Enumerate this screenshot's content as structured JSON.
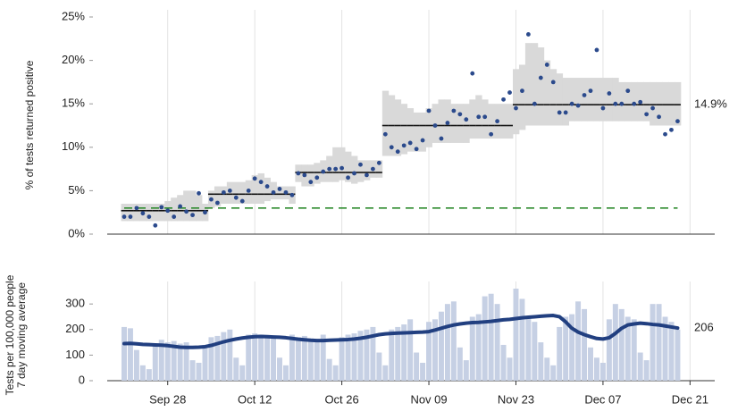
{
  "chart_data": {
    "type": "panels",
    "categories": [
      null,
      null,
      null,
      null,
      null,
      null,
      null,
      "Sep 28",
      null,
      null,
      null,
      null,
      null,
      null,
      null,
      null,
      null,
      null,
      null,
      null,
      null,
      "Oct 12",
      null,
      null,
      null,
      null,
      null,
      null,
      null,
      null,
      null,
      null,
      null,
      null,
      null,
      "Oct 26",
      null,
      null,
      null,
      null,
      null,
      null,
      null,
      null,
      null,
      null,
      null,
      null,
      null,
      "Nov 09",
      null,
      null,
      null,
      null,
      null,
      null,
      null,
      null,
      null,
      null,
      null,
      null,
      null,
      "Nov 23",
      null,
      null,
      null,
      null,
      null,
      null,
      null,
      null,
      null,
      null,
      null,
      null,
      null,
      "Dec 07",
      null,
      null,
      null,
      null,
      null,
      null,
      null,
      null,
      null,
      null,
      null,
      null,
      null,
      "Dec 21"
    ],
    "panels": [
      {
        "type": "scatter",
        "ylabel": "% of tests returned positive",
        "ylim": [
          0,
          25
        ],
        "yticks": [
          {
            "value": 0,
            "label": "0%"
          },
          {
            "value": 5,
            "label": "5%"
          },
          {
            "value": 10,
            "label": "10%"
          },
          {
            "value": 15,
            "label": "15%"
          },
          {
            "value": 20,
            "label": "20%"
          },
          {
            "value": 25,
            "label": "25%"
          }
        ],
        "band": {
          "color": "#d9d9d9",
          "lower": [
            1.5,
            1.5,
            1.5,
            1.5,
            1.5,
            1.5,
            1.5,
            1.5,
            1.5,
            1.5,
            1.5,
            1.5,
            1.5,
            1.5,
            3.0,
            3.2,
            3.5,
            3.5,
            3.5,
            3.5,
            3.5,
            3.5,
            3.5,
            3.8,
            4.0,
            4.0,
            4.0,
            3.5,
            6.0,
            5.5,
            5.5,
            5.8,
            6.0,
            6.0,
            6.0,
            6.2,
            6.0,
            5.8,
            6.0,
            6.2,
            6.5,
            6.5,
            9.0,
            9.0,
            9.0,
            9.2,
            9.5,
            9.5,
            9.5,
            10.0,
            10.5,
            10.5,
            10.5,
            10.5,
            10.5,
            10.5,
            11.0,
            11.0,
            11.0,
            11.0,
            11.0,
            11.0,
            11.0,
            11.5,
            12.0,
            12.5,
            12.5,
            12.5,
            12.5,
            12.5,
            12.5,
            12.5,
            13.0,
            13.0,
            13.0,
            13.0,
            13.0,
            13.0,
            13.0,
            13.0,
            13.0,
            13.0,
            13.0,
            13.0,
            13.0,
            12.5,
            12.5,
            12.5,
            12.5,
            12.5,
            null,
            null
          ],
          "upper": [
            3.5,
            3.5,
            3.5,
            3.5,
            3.5,
            3.5,
            3.5,
            3.8,
            4.2,
            4.5,
            5.0,
            5.0,
            4.5,
            3.5,
            5.0,
            5.5,
            5.5,
            6.0,
            6.0,
            6.0,
            6.2,
            6.8,
            7.0,
            6.5,
            6.0,
            5.5,
            5.5,
            5.5,
            8.0,
            8.0,
            8.0,
            8.2,
            8.5,
            9.0,
            10.0,
            10.0,
            9.5,
            9.0,
            8.5,
            8.5,
            8.5,
            8.5,
            16.5,
            16.0,
            15.5,
            15.0,
            14.5,
            14.0,
            14.0,
            14.5,
            15.0,
            15.5,
            15.5,
            15.0,
            15.0,
            15.0,
            15.5,
            16.0,
            15.5,
            15.0,
            15.0,
            15.0,
            15.0,
            19.0,
            19.5,
            22.0,
            22.0,
            21.5,
            20.0,
            19.0,
            18.5,
            18.0,
            18.0,
            18.0,
            18.0,
            18.0,
            18.0,
            18.0,
            18.0,
            18.0,
            17.5,
            17.5,
            17.5,
            17.5,
            17.5,
            17.5,
            17.5,
            17.5,
            17.5,
            17.5,
            null,
            null
          ]
        },
        "median": {
          "color": "#111111",
          "values": [
            2.7,
            2.7,
            2.7,
            2.7,
            2.7,
            2.7,
            2.7,
            2.7,
            2.7,
            2.7,
            2.7,
            2.7,
            2.7,
            2.7,
            4.6,
            4.6,
            4.6,
            4.6,
            4.6,
            4.6,
            4.6,
            4.6,
            4.6,
            4.6,
            4.6,
            4.6,
            4.6,
            4.6,
            7.1,
            7.1,
            7.1,
            7.1,
            7.1,
            7.1,
            7.1,
            7.1,
            7.1,
            7.1,
            7.1,
            7.1,
            7.1,
            7.1,
            12.5,
            12.5,
            12.5,
            12.5,
            12.5,
            12.5,
            12.5,
            12.5,
            12.5,
            12.5,
            12.5,
            12.5,
            12.5,
            12.5,
            12.5,
            12.5,
            12.5,
            12.5,
            12.5,
            12.5,
            12.5,
            14.9,
            14.9,
            14.9,
            14.9,
            14.9,
            14.9,
            14.9,
            14.9,
            14.9,
            14.9,
            14.9,
            14.9,
            14.9,
            14.9,
            14.9,
            14.9,
            14.9,
            14.9,
            14.9,
            14.9,
            14.9,
            14.9,
            14.9,
            14.9,
            14.9,
            14.9,
            14.9,
            null,
            null
          ]
        },
        "points": {
          "color": "#2b4a8c",
          "values": [
            2.0,
            2.0,
            3.0,
            2.4,
            2.0,
            1.0,
            3.1,
            2.7,
            2.0,
            3.2,
            2.6,
            2.2,
            4.7,
            2.5,
            4.0,
            3.6,
            4.8,
            5.0,
            4.2,
            3.8,
            5.0,
            6.4,
            6.0,
            5.5,
            4.8,
            5.2,
            4.8,
            4.5,
            7.0,
            6.8,
            6.0,
            6.5,
            7.2,
            7.5,
            7.5,
            7.6,
            6.5,
            7.0,
            8.0,
            6.8,
            7.5,
            8.2,
            11.5,
            10.0,
            9.5,
            10.2,
            10.5,
            9.8,
            10.8,
            14.2,
            12.5,
            11.0,
            12.8,
            14.2,
            13.8,
            13.2,
            18.5,
            13.5,
            13.5,
            11.5,
            13.0,
            15.5,
            16.3,
            14.5,
            16.5,
            23.0,
            15.0,
            18.0,
            19.5,
            17.5,
            14.0,
            14.0,
            15.0,
            14.8,
            16.0,
            16.5,
            21.2,
            14.5,
            16.2,
            15.0,
            15.0,
            16.5,
            15.0,
            15.2,
            13.8,
            14.5,
            13.5,
            11.5,
            12.0,
            13.0,
            null,
            null
          ]
        },
        "threshold": {
          "value": 3,
          "color": "#2e8b2e"
        },
        "annotation": {
          "value": 14.9,
          "label": "14.9%"
        }
      },
      {
        "type": "bar",
        "ylabel": [
          "Tests per 100,000 people",
          "7 day moving average"
        ],
        "ylim": [
          0,
          360
        ],
        "yticks": [
          0,
          100,
          200,
          300
        ],
        "bars": {
          "color": "#c6d0e4",
          "values": [
            210,
            205,
            120,
            60,
            45,
            140,
            160,
            150,
            155,
            145,
            150,
            80,
            70,
            140,
            170,
            175,
            190,
            200,
            90,
            60,
            180,
            185,
            180,
            175,
            170,
            90,
            60,
            180,
            170,
            175,
            165,
            160,
            180,
            85,
            60,
            170,
            180,
            185,
            195,
            200,
            210,
            110,
            60,
            200,
            210,
            220,
            240,
            110,
            70,
            230,
            240,
            270,
            300,
            310,
            130,
            80,
            250,
            260,
            330,
            340,
            300,
            140,
            90,
            360,
            320,
            250,
            230,
            150,
            90,
            60,
            210,
            250,
            260,
            310,
            280,
            130,
            90,
            70,
            240,
            300,
            280,
            250,
            240,
            110,
            80,
            300,
            300,
            250,
            230,
            200,
            null,
            null
          ]
        },
        "line": {
          "color": "#213f80",
          "values": [
            145,
            146,
            144,
            142,
            141,
            140,
            139,
            137,
            134,
            131,
            130,
            130,
            131,
            133,
            138,
            145,
            152,
            158,
            163,
            167,
            170,
            172,
            173,
            172,
            171,
            170,
            168,
            165,
            162,
            160,
            158,
            157,
            157,
            158,
            159,
            160,
            161,
            163,
            166,
            170,
            175,
            180,
            183,
            185,
            186,
            187,
            188,
            189,
            190,
            192,
            198,
            205,
            212,
            218,
            222,
            225,
            227,
            228,
            230,
            232,
            235,
            238,
            240,
            243,
            246,
            248,
            250,
            252,
            254,
            255,
            250,
            230,
            205,
            190,
            180,
            172,
            165,
            163,
            168,
            185,
            205,
            218,
            222,
            225,
            223,
            220,
            218,
            214,
            210,
            206,
            null,
            null
          ]
        }
      }
    ]
  }
}
